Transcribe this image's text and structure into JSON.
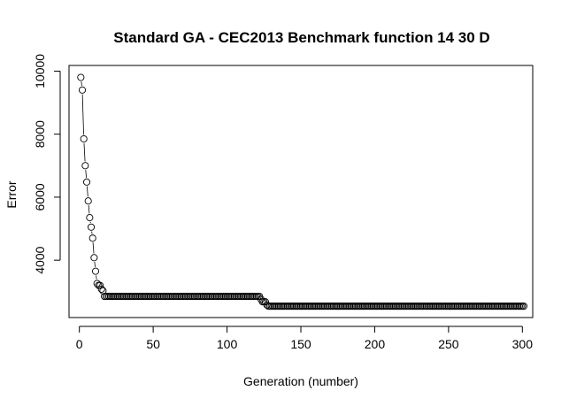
{
  "chart_data": {
    "type": "line",
    "title": "Standard GA - CEC2013 Benchmark function  14 30 D",
    "xlabel": "Generation (number)",
    "ylabel": "Error",
    "xlim": [
      -7,
      307
    ],
    "ylim": [
      2180,
      10180
    ],
    "xticks": [
      0,
      50,
      100,
      150,
      200,
      250,
      300
    ],
    "yticks": [
      4000,
      6000,
      8000,
      10000
    ],
    "grid": false,
    "legend": "none",
    "marker": "open-circle",
    "line_style": "b",
    "series": [
      {
        "points": [
          [
            1,
            9800
          ],
          [
            2,
            9400
          ],
          [
            3,
            7850
          ],
          [
            4,
            7000
          ],
          [
            5,
            6480
          ],
          [
            6,
            5880
          ],
          [
            7,
            5350
          ],
          [
            8,
            5050
          ],
          [
            9,
            4700
          ],
          [
            10,
            4080
          ],
          [
            11,
            3650
          ],
          [
            12,
            3260
          ],
          [
            13,
            3200
          ],
          [
            14,
            3200
          ],
          [
            15,
            3080
          ],
          [
            16,
            3030
          ],
          [
            17,
            2850
          ],
          [
            18,
            2850
          ],
          [
            19,
            2850
          ],
          [
            20,
            2850
          ],
          [
            21,
            2850
          ],
          [
            22,
            2850
          ],
          [
            122,
            2850
          ],
          [
            123,
            2760
          ],
          [
            124,
            2680
          ],
          [
            125,
            2680
          ],
          [
            126,
            2680
          ],
          [
            127,
            2580
          ],
          [
            128,
            2540
          ],
          [
            301,
            2540
          ]
        ],
        "interpolation": "step-hold between listed points"
      }
    ]
  }
}
